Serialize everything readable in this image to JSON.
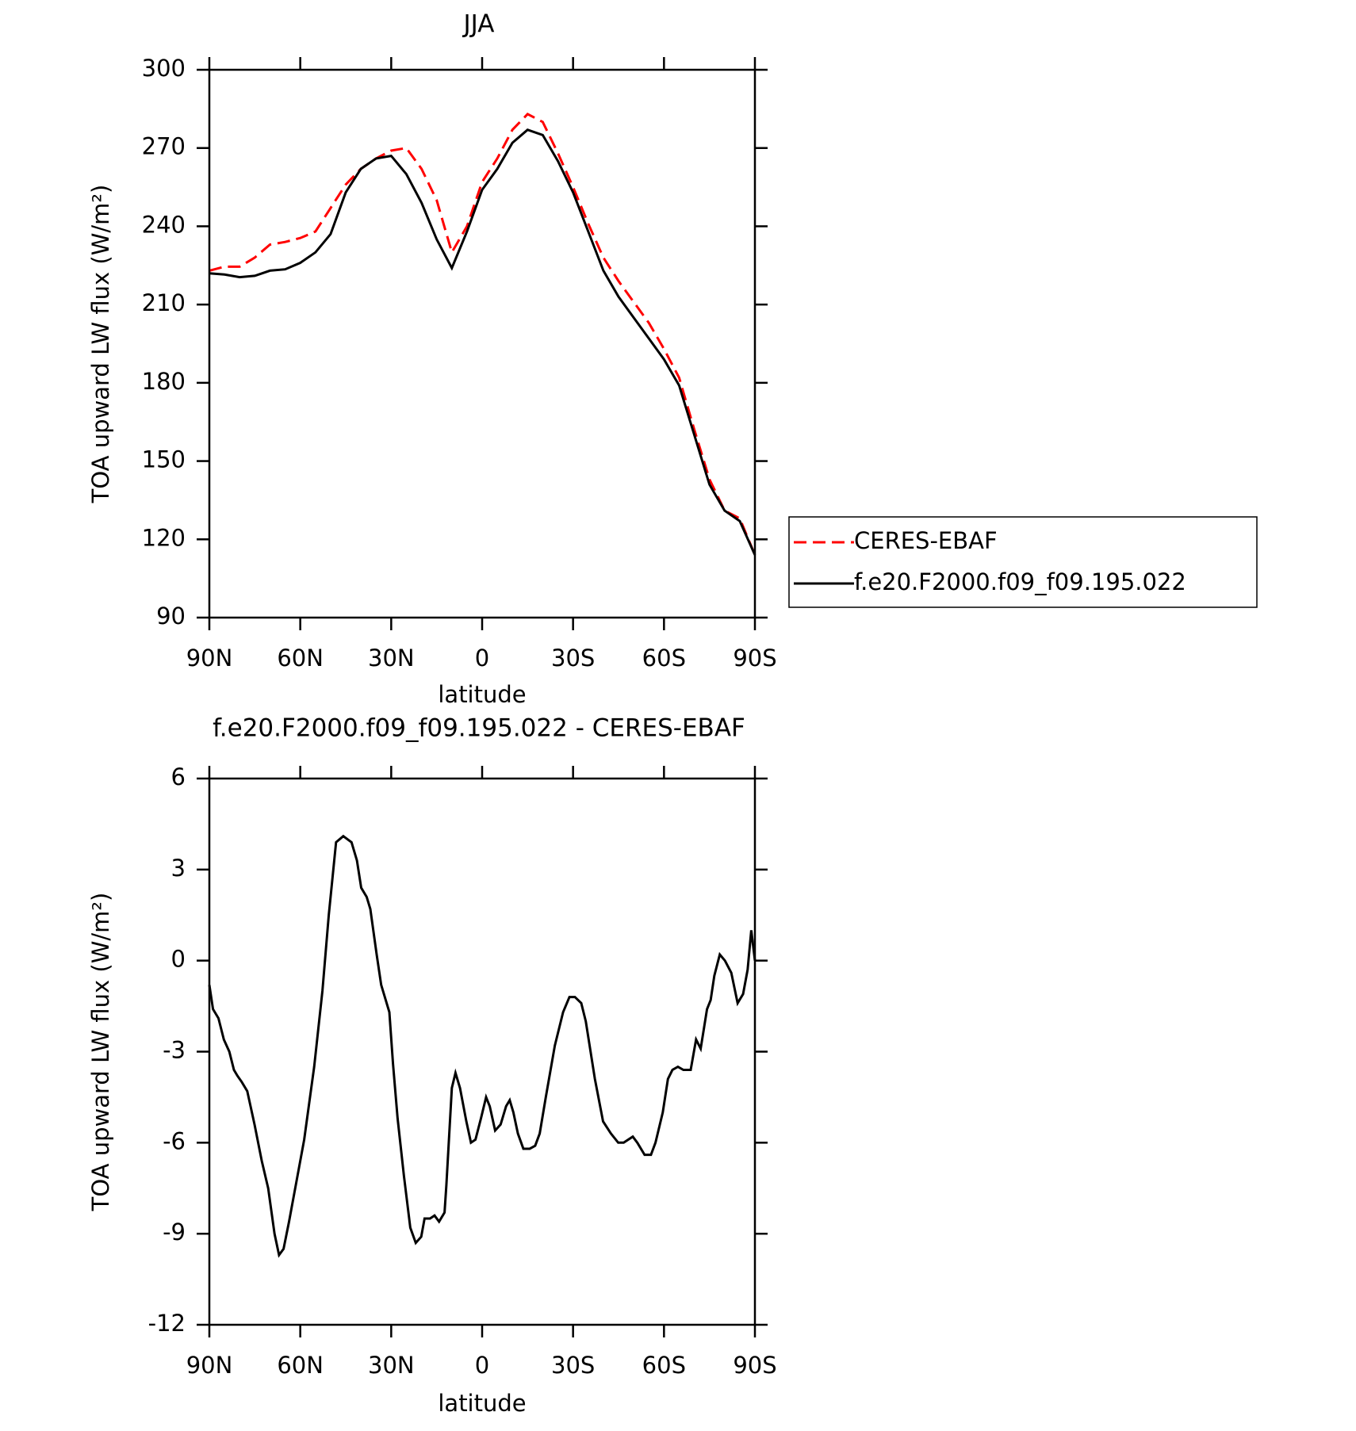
{
  "chart_data": [
    {
      "type": "line",
      "title": "JJA",
      "xlabel": "latitude",
      "ylabel": "TOA upward LW flux (W/m²)",
      "x": [
        90,
        85,
        80,
        75,
        70,
        65,
        60,
        55,
        50,
        45,
        40,
        35,
        30,
        25,
        20,
        15,
        10,
        5,
        0,
        -5,
        -10,
        -15,
        -20,
        -25,
        -30,
        -35,
        -40,
        -45,
        -50,
        -55,
        -60,
        -65,
        -70,
        -75,
        -80,
        -85,
        -90
      ],
      "series": [
        {
          "name": "CERES-EBAF",
          "color": "#ff0000",
          "line_style": "dashed",
          "values": [
            223,
            224.5,
            224.5,
            228,
            233,
            234,
            235.5,
            238,
            247,
            256,
            262,
            266,
            269,
            270,
            262,
            250,
            230,
            240,
            257,
            266,
            277,
            283,
            280,
            268,
            255,
            241,
            228,
            219,
            211,
            203,
            193,
            182,
            162,
            143,
            131,
            128,
            114
          ]
        },
        {
          "name": "f.e20.F2000.f09_f09.195.022",
          "color": "#000000",
          "line_style": "solid",
          "values": [
            222,
            221.5,
            220.5,
            221,
            223,
            223.5,
            226,
            230,
            237,
            253,
            262,
            266,
            267,
            260,
            249,
            235,
            224,
            238,
            254,
            262,
            272,
            277,
            275,
            265,
            253,
            238,
            223,
            213,
            205,
            197,
            189,
            179,
            160,
            141,
            131,
            127,
            114
          ]
        }
      ],
      "xlim": [
        90,
        -90
      ],
      "xticks": [
        {
          "value": 90,
          "label": "90N"
        },
        {
          "value": 60,
          "label": "60N"
        },
        {
          "value": 30,
          "label": "30N"
        },
        0,
        {
          "value": -30,
          "label": "30S"
        },
        {
          "value": -60,
          "label": "60S"
        },
        {
          "value": -90,
          "label": "90S"
        }
      ],
      "ylim": [
        90,
        300
      ],
      "yticks": [
        90,
        120,
        150,
        180,
        210,
        240,
        270,
        300
      ],
      "legend": "right"
    },
    {
      "type": "line",
      "title": "f.e20.F2000.f09_f09.195.022 - CERES-EBAF",
      "xlabel": "latitude",
      "ylabel": "TOA upward LW flux (W/m²)",
      "x": [
        90,
        88.8,
        87.0,
        85.2,
        83.4,
        81.9,
        80.7,
        79.3,
        77.5,
        75.1,
        72.7,
        70.6,
        68.5,
        67.0,
        65.5,
        63.7,
        61.3,
        58.7,
        55.4,
        52.7,
        50.6,
        48.2,
        45.8,
        43.1,
        41.3,
        39.9,
        38.1,
        36.9,
        34.8,
        33.3,
        30.6,
        29.4,
        27.9,
        25.8,
        23.7,
        21.9,
        20.1,
        19.0,
        17.2,
        15.7,
        14.2,
        12.4,
        11.8,
        10.0,
        8.8,
        7.3,
        5.2,
        3.7,
        2.2,
        0.4,
        -1.3,
        -2.5,
        -4.3,
        -6.1,
        -7.9,
        -9.1,
        -10.3,
        -11.8,
        -13.6,
        -15.7,
        -17.5,
        -19.0,
        -21.0,
        -24.0,
        -26.7,
        -28.8,
        -30.6,
        -32.7,
        -34.2,
        -37.2,
        -39.9,
        -42.5,
        -44.9,
        -46.7,
        -49.7,
        -51.2,
        -53.6,
        -55.7,
        -57.2,
        -59.6,
        -61.3,
        -62.8,
        -64.6,
        -66.4,
        -68.8,
        -70.6,
        -72.1,
        -74.2,
        -75.4,
        -76.6,
        -78.4,
        -80.1,
        -82.2,
        -84.3,
        -86.1,
        -87.6,
        -88.8,
        -90
      ],
      "series": [
        {
          "name": "f.e20.F2000.f09_f09.195.022 - CERES-EBAF",
          "color": "#000000",
          "line_style": "solid",
          "values": [
            -0.8,
            -1.6,
            -1.9,
            -2.6,
            -3.0,
            -3.6,
            -3.8,
            -4.0,
            -4.3,
            -5.4,
            -6.6,
            -7.5,
            -9.0,
            -9.7,
            -9.5,
            -8.6,
            -7.3,
            -5.9,
            -3.5,
            -1.0,
            1.5,
            3.9,
            4.1,
            3.9,
            3.3,
            2.4,
            2.1,
            1.7,
            0.2,
            -0.8,
            -1.7,
            -3.4,
            -5.2,
            -7.1,
            -8.8,
            -9.3,
            -9.1,
            -8.5,
            -8.5,
            -8.4,
            -8.6,
            -8.3,
            -7.4,
            -4.2,
            -3.7,
            -4.2,
            -5.3,
            -6.0,
            -5.9,
            -5.2,
            -4.5,
            -4.8,
            -5.6,
            -5.4,
            -4.8,
            -4.6,
            -5.0,
            -5.7,
            -6.2,
            -6.2,
            -6.1,
            -5.7,
            -4.5,
            -2.8,
            -1.7,
            -1.2,
            -1.2,
            -1.4,
            -2.0,
            -3.9,
            -5.3,
            -5.7,
            -6.0,
            -6.0,
            -5.8,
            -6.0,
            -6.4,
            -6.4,
            -6.0,
            -5.0,
            -3.9,
            -3.6,
            -3.5,
            -3.6,
            -3.6,
            -2.6,
            -2.9,
            -1.6,
            -1.3,
            -0.5,
            0.2,
            0.0,
            -0.4,
            -1.4,
            -1.1,
            -0.3,
            1.0,
            0.0
          ]
        }
      ],
      "xlim": [
        90,
        -90
      ],
      "xticks": [
        {
          "value": 90,
          "label": "90N"
        },
        {
          "value": 60,
          "label": "60N"
        },
        {
          "value": 30,
          "label": "30N"
        },
        0,
        {
          "value": -30,
          "label": "30S"
        },
        {
          "value": -60,
          "label": "60S"
        },
        {
          "value": -90,
          "label": "90S"
        }
      ],
      "ylim": [
        -12,
        6
      ],
      "yticks": [
        -12,
        -9,
        -6,
        -3,
        0,
        3,
        6
      ]
    }
  ]
}
